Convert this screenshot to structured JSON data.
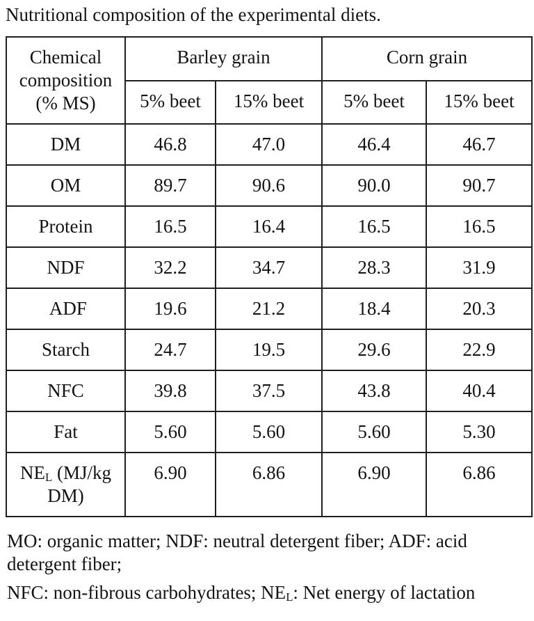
{
  "title": "Nutritional composition of the experimental diets.",
  "table": {
    "corner_header": "Chemical composition (% MS)",
    "group_headers": [
      "Barley grain",
      "Corn grain"
    ],
    "sub_headers": [
      "5% beet",
      "15% beet",
      "5% beet",
      "15% beet"
    ],
    "rows": [
      {
        "label": "DM",
        "values": [
          "46.8",
          "47.0",
          "46.4",
          "46.7"
        ]
      },
      {
        "label": "OM",
        "values": [
          "89.7",
          "90.6",
          "90.0",
          "90.7"
        ]
      },
      {
        "label": "Protein",
        "values": [
          "16.5",
          "16.4",
          "16.5",
          "16.5"
        ]
      },
      {
        "label": "NDF",
        "values": [
          "32.2",
          "34.7",
          "28.3",
          "31.9"
        ]
      },
      {
        "label": " ADF",
        "values": [
          "19.6",
          "21.2",
          "18.4",
          "20.3"
        ]
      },
      {
        "label": "Starch",
        "values": [
          "24.7",
          "19.5",
          "29.6",
          "22.9"
        ]
      },
      {
        "label": "NFC",
        "values": [
          "39.8",
          "37.5",
          "43.8",
          "40.4"
        ]
      },
      {
        "label": "Fat",
        "values": [
          "5.60",
          "5.60",
          "5.60",
          "5.30"
        ]
      },
      {
        "label": [
          {
            "t": "NE"
          },
          {
            "t": "L",
            "sub": true
          },
          {
            "t": " (MJ/kg DM)"
          }
        ],
        "values": [
          "6.90",
          "6.86",
          "6.90",
          "6.86"
        ]
      }
    ]
  },
  "footnotes": [
    [
      {
        "t": "MO: organic matter; NDF: neutral detergent fiber; ADF: acid detergent fiber;"
      }
    ],
    [
      {
        "t": "NFC: non-fibrous carbohydrates; NE"
      },
      {
        "t": "L",
        "sub": true
      },
      {
        "t": ": Net energy of lactation"
      }
    ]
  ],
  "colors": {
    "text": "#141414",
    "border": "#1f1f1f",
    "page_background": "#ffffff"
  }
}
